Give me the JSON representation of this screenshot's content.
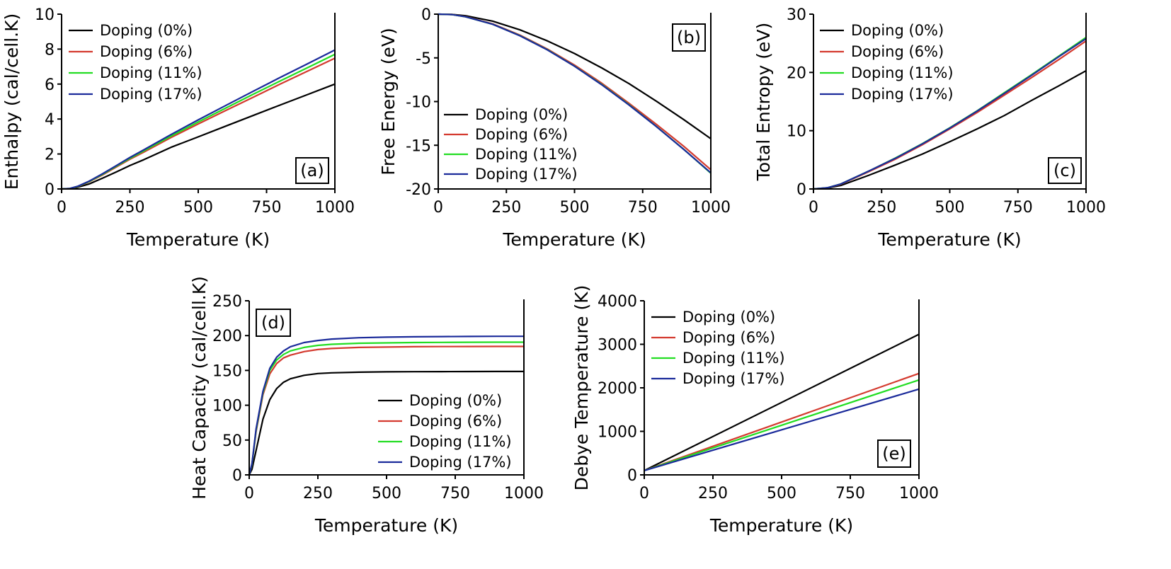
{
  "colors": {
    "Doping (0%)": "#000000",
    "Doping (6%)": "#d43a2f",
    "Doping (11%)": "#22dd22",
    "Doping (17%)": "#1a2a9a"
  },
  "chart_data": [
    {
      "panel": "(a)",
      "type": "line",
      "xlabel": "Temperature (K)",
      "ylabel": "Enthalpy (cal/cell.K)",
      "xlim": [
        0,
        1000
      ],
      "ylim": [
        0,
        10
      ],
      "xticks": [
        "0",
        "250",
        "500",
        "750",
        "1000"
      ],
      "yticks": [
        "0",
        "2",
        "4",
        "6",
        "8",
        "10"
      ],
      "legend": "top-left",
      "x": [
        0,
        30,
        60,
        100,
        150,
        200,
        250,
        300,
        400,
        500,
        600,
        700,
        800,
        900,
        1000
      ],
      "series": [
        {
          "name": "Doping (0%)",
          "values": [
            0,
            0.02,
            0.1,
            0.28,
            0.62,
            0.97,
            1.34,
            1.67,
            2.38,
            2.98,
            3.59,
            4.2,
            4.8,
            5.4,
            6.0
          ]
        },
        {
          "name": "Doping (6%)",
          "values": [
            0,
            0.03,
            0.14,
            0.4,
            0.8,
            1.25,
            1.7,
            2.1,
            2.94,
            3.72,
            4.48,
            5.24,
            6.0,
            6.74,
            7.48
          ]
        },
        {
          "name": "Doping (11%)",
          "values": [
            0,
            0.03,
            0.15,
            0.42,
            0.84,
            1.3,
            1.75,
            2.17,
            3.02,
            3.83,
            4.62,
            5.41,
            6.18,
            6.94,
            7.7
          ]
        },
        {
          "name": "Doping (17%)",
          "values": [
            0,
            0.03,
            0.16,
            0.44,
            0.87,
            1.33,
            1.8,
            2.23,
            3.11,
            3.95,
            4.77,
            5.58,
            6.38,
            7.16,
            7.95
          ]
        }
      ]
    },
    {
      "panel": "(b)",
      "type": "line",
      "xlabel": "Temperature (K)",
      "ylabel": "Free Energy (eV)",
      "xlim": [
        0,
        1000
      ],
      "ylim": [
        -20,
        0
      ],
      "xticks": [
        "0",
        "250",
        "500",
        "750",
        "1000"
      ],
      "yticks": [
        "0",
        "-5",
        "-10",
        "-15",
        "-20"
      ],
      "legend": "bottom-left",
      "x": [
        0,
        50,
        100,
        200,
        300,
        400,
        500,
        600,
        700,
        800,
        900,
        1000
      ],
      "series": [
        {
          "name": "Doping (0%)",
          "values": [
            0,
            -0.03,
            -0.18,
            -0.8,
            -1.8,
            -3.05,
            -4.5,
            -6.15,
            -7.95,
            -9.95,
            -12.05,
            -14.25
          ]
        },
        {
          "name": "Doping (6%)",
          "values": [
            0,
            -0.04,
            -0.28,
            -1.12,
            -2.4,
            -3.98,
            -5.82,
            -7.9,
            -10.2,
            -12.6,
            -15.1,
            -17.8
          ]
        },
        {
          "name": "Doping (11%)",
          "values": [
            0,
            -0.05,
            -0.3,
            -1.16,
            -2.46,
            -4.06,
            -5.94,
            -8.04,
            -10.36,
            -12.84,
            -15.44,
            -18.2
          ]
        },
        {
          "name": "Doping (17%)",
          "values": [
            0,
            -0.05,
            -0.3,
            -1.16,
            -2.48,
            -4.08,
            -5.96,
            -8.08,
            -10.4,
            -12.86,
            -15.46,
            -18.15
          ]
        }
      ]
    },
    {
      "panel": "(c)",
      "type": "line",
      "xlabel": "Temperature (K)",
      "ylabel": "Total Entropy (eV)",
      "xlim": [
        0,
        1000
      ],
      "ylim": [
        0,
        30
      ],
      "xticks": [
        "0",
        "250",
        "500",
        "750",
        "1000"
      ],
      "yticks": [
        "0",
        "10",
        "20",
        "30"
      ],
      "legend": "top-left",
      "x": [
        0,
        50,
        100,
        200,
        300,
        400,
        500,
        600,
        700,
        800,
        900,
        1000
      ],
      "series": [
        {
          "name": "Doping (0%)",
          "values": [
            0,
            0.15,
            0.6,
            2.3,
            4.1,
            6.0,
            8.1,
            10.3,
            12.6,
            15.2,
            17.7,
            20.3
          ]
        },
        {
          "name": "Doping (6%)",
          "values": [
            0,
            0.2,
            0.8,
            2.9,
            5.1,
            7.6,
            10.3,
            13.1,
            16.1,
            19.1,
            22.2,
            25.4
          ]
        },
        {
          "name": "Doping (11%)",
          "values": [
            0,
            0.2,
            0.85,
            3.0,
            5.3,
            7.8,
            10.5,
            13.4,
            16.5,
            19.6,
            22.8,
            26.0
          ]
        },
        {
          "name": "Doping (17%)",
          "values": [
            0,
            0.2,
            0.85,
            3.0,
            5.25,
            7.75,
            10.45,
            13.35,
            16.4,
            19.5,
            22.7,
            25.8
          ]
        }
      ]
    },
    {
      "panel": "(d)",
      "type": "line",
      "xlabel": "Temperature (K)",
      "ylabel": "Heat Capacity (cal/cell.K)",
      "xlim": [
        0,
        1000
      ],
      "ylim": [
        0,
        250
      ],
      "xticks": [
        "0",
        "250",
        "500",
        "750",
        "1000"
      ],
      "yticks": [
        "0",
        "50",
        "100",
        "150",
        "200",
        "250"
      ],
      "legend": "bottom-right",
      "x": [
        0,
        10,
        25,
        50,
        75,
        100,
        125,
        150,
        200,
        250,
        300,
        400,
        500,
        600,
        700,
        800,
        900,
        1000
      ],
      "series": [
        {
          "name": "Doping (0%)",
          "values": [
            0,
            8,
            35,
            80,
            108,
            124,
            133,
            138,
            143,
            145.5,
            146.5,
            147.5,
            148,
            148.2,
            148.3,
            148.4,
            148.5,
            148.5
          ]
        },
        {
          "name": "Doping (6%)",
          "values": [
            0,
            15,
            62,
            115,
            145,
            160,
            168,
            172,
            177,
            180,
            181.5,
            183,
            183.5,
            184,
            184.2,
            184.4,
            184.5,
            184.5
          ]
        },
        {
          "name": "Doping (11%)",
          "values": [
            0,
            15,
            64,
            118,
            150,
            165,
            173,
            178,
            183,
            186,
            187.5,
            189,
            189.5,
            190,
            190.2,
            190.4,
            190.5,
            190.5
          ]
        },
        {
          "name": "Doping (17%)",
          "values": [
            0,
            16,
            66,
            120,
            153,
            169,
            178,
            184,
            190,
            193,
            195,
            197,
            197.8,
            198.3,
            198.6,
            198.8,
            199,
            199
          ]
        }
      ]
    },
    {
      "panel": "(e)",
      "type": "line",
      "xlabel": "Temperature (K)",
      "ylabel": "Debye Temperature (K)",
      "xlim": [
        0,
        1000
      ],
      "ylim": [
        0,
        4000
      ],
      "xticks": [
        "0",
        "250",
        "500",
        "750",
        "1000"
      ],
      "yticks": [
        "0",
        "1000",
        "2000",
        "3000",
        "4000"
      ],
      "legend": "top-left",
      "x": [
        0,
        1000
      ],
      "series": [
        {
          "name": "Doping (0%)",
          "values": [
            100,
            3230
          ]
        },
        {
          "name": "Doping (6%)",
          "values": [
            100,
            2330
          ]
        },
        {
          "name": "Doping (11%)",
          "values": [
            100,
            2180
          ]
        },
        {
          "name": "Doping (17%)",
          "values": [
            100,
            1970
          ]
        }
      ]
    }
  ]
}
